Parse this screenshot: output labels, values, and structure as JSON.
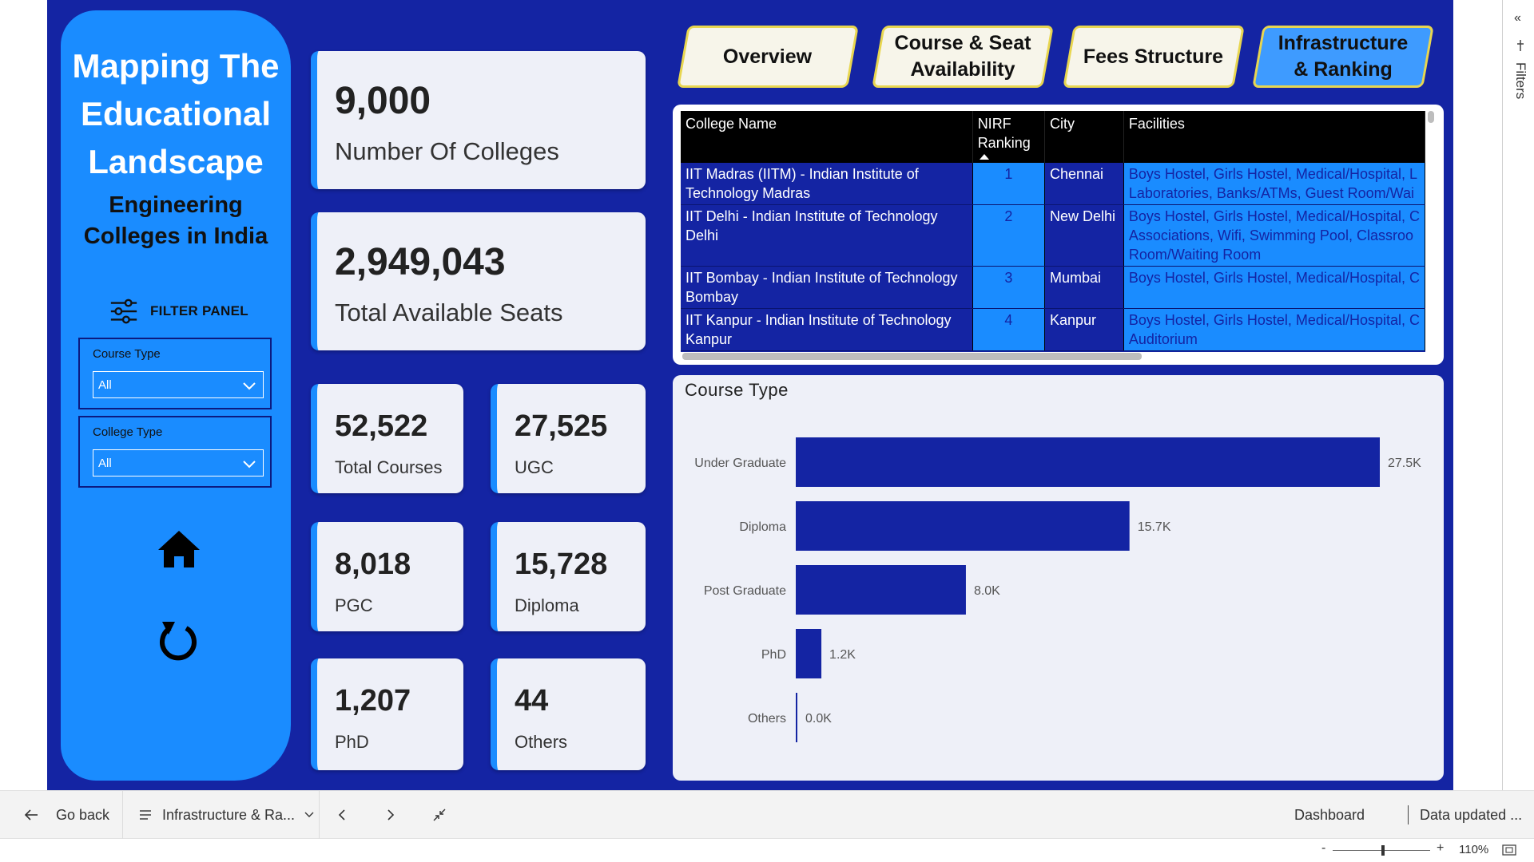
{
  "sidebar": {
    "title": "Mapping The Educational Landscape",
    "subtitle": "Engineering Colleges in India",
    "filter_panel_label": "FILTER PANEL",
    "slicers": [
      {
        "label": "Course Type",
        "value": "All"
      },
      {
        "label": "College Type",
        "value": "All"
      }
    ],
    "home_icon": "home-icon",
    "reset_icon": "reset-icon"
  },
  "kpis": {
    "colleges": {
      "value": "9,000",
      "label": "Number Of Colleges"
    },
    "seats": {
      "value": "2,949,043",
      "label": "Total Available Seats"
    },
    "courses": {
      "value": "52,522",
      "label": "Total Courses"
    },
    "ugc": {
      "value": "27,525",
      "label": "UGC"
    },
    "pgc": {
      "value": "8,018",
      "label": "PGC"
    },
    "diploma": {
      "value": "15,728",
      "label": "Diploma"
    },
    "phd": {
      "value": "1,207",
      "label": "PhD"
    },
    "others": {
      "value": "44",
      "label": "Others"
    }
  },
  "nav": {
    "overview": "Overview",
    "course_seat": "Course & Seat Availability",
    "fees": "Fees Structure",
    "infra": "Infrastructure & Ranking"
  },
  "table": {
    "headers": [
      "College Name",
      "NIRF Ranking",
      "City",
      "Facilities"
    ],
    "rows": [
      {
        "name": "IIT Madras (IITM) - Indian Institute of Technology Madras",
        "rank": "1",
        "city": "Chennai",
        "facilities": [
          "Boys Hostel, Girls Hostel, Medical/Hospital, L",
          "Laboratories, Banks/ATMs, Guest Room/Wai"
        ]
      },
      {
        "name": "IIT Delhi - Indian Institute of Technology Delhi",
        "rank": "2",
        "city": "New Delhi",
        "facilities": [
          "Boys Hostel, Girls Hostel, Medical/Hospital, C",
          "Associations, Wifi, Swimming Pool, Classroo",
          "Room/Waiting Room"
        ]
      },
      {
        "name": "IIT Bombay - Indian Institute of Technology Bombay",
        "rank": "3",
        "city": "Mumbai",
        "facilities": [
          "Boys Hostel, Girls Hostel, Medical/Hospital, C"
        ]
      },
      {
        "name": "IIT Kanpur - Indian Institute of Technology Kanpur",
        "rank": "4",
        "city": "Kanpur",
        "facilities": [
          "Boys Hostel, Girls Hostel, Medical/Hospital, C",
          "Auditorium"
        ]
      }
    ]
  },
  "chart_data": {
    "type": "bar",
    "orientation": "horizontal",
    "title": "Course Type",
    "categories": [
      "Under Graduate",
      "Diploma",
      "Post Graduate",
      "PhD",
      "Others"
    ],
    "values": [
      27525,
      15728,
      8018,
      1207,
      44
    ],
    "data_labels": [
      "27.5K",
      "15.7K",
      "8.0K",
      "1.2K",
      "0.0K"
    ],
    "bar_color": "#1424A3",
    "xlim": [
      0,
      27525
    ],
    "grid": false,
    "legend": "none"
  },
  "filters_pane": {
    "label": "Filters",
    "collapse_icon": "double-chevron-left-icon"
  },
  "bottom_bar": {
    "go_back": "Go back",
    "page_selector": "Infrastructure & Ra...",
    "dashboard": "Dashboard",
    "data_updated": "Data updated ...",
    "zoom": "110%"
  },
  "colors": {
    "canvas": "#1424A3",
    "accent": "#1A8CFF",
    "nav_border": "#E8D650",
    "card_bg": "#EEF0F8"
  }
}
